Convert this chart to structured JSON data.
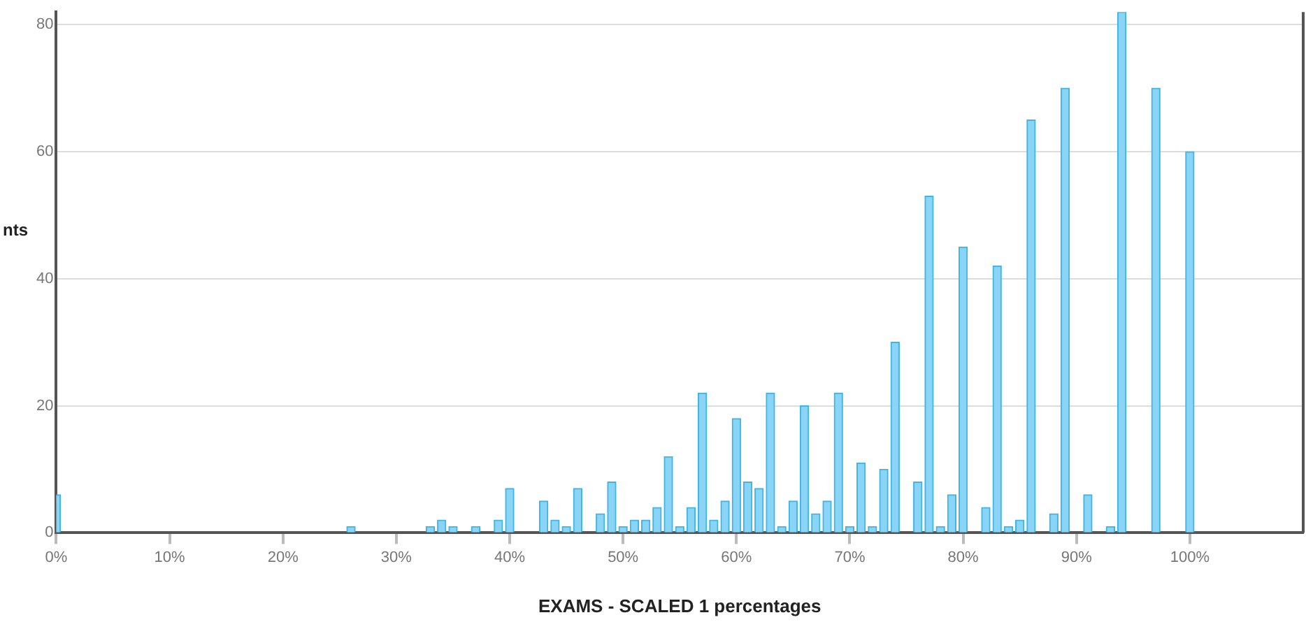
{
  "chart_data": {
    "type": "bar",
    "xlabel": "EXAMS - SCALED 1 percentages",
    "ylabel": "nts",
    "x": [
      0,
      26,
      33,
      34,
      35,
      37,
      39,
      40,
      43,
      44,
      45,
      46,
      48,
      49,
      50,
      51,
      52,
      53,
      54,
      55,
      56,
      57,
      58,
      59,
      60,
      61,
      62,
      63,
      64,
      65,
      66,
      67,
      68,
      69,
      70,
      71,
      72,
      73,
      74,
      76,
      77,
      78,
      79,
      80,
      82,
      83,
      84,
      85,
      86,
      88,
      89,
      91,
      93,
      94,
      97,
      100
    ],
    "values": [
      6,
      1,
      1,
      2,
      1,
      1,
      2,
      7,
      5,
      2,
      1,
      7,
      3,
      8,
      1,
      2,
      2,
      4,
      12,
      1,
      4,
      22,
      2,
      5,
      18,
      8,
      7,
      22,
      1,
      5,
      20,
      3,
      5,
      22,
      1,
      11,
      1,
      10,
      30,
      8,
      53,
      1,
      6,
      45,
      4,
      42,
      1,
      2,
      65,
      3,
      70,
      6,
      1,
      82,
      70,
      60
    ],
    "color": "#8ad5f6",
    "xlim": [
      0,
      110
    ],
    "xticks": [
      {
        "value": 0,
        "label": "0%"
      },
      {
        "value": 10,
        "label": "10%"
      },
      {
        "value": 20,
        "label": "20%"
      },
      {
        "value": 30,
        "label": "30%"
      },
      {
        "value": 40,
        "label": "40%"
      },
      {
        "value": 50,
        "label": "50%"
      },
      {
        "value": 60,
        "label": "60%"
      },
      {
        "value": 70,
        "label": "70%"
      },
      {
        "value": 80,
        "label": "80%"
      },
      {
        "value": 90,
        "label": "90%"
      },
      {
        "value": 100,
        "label": "100%"
      }
    ],
    "ylim": [
      0,
      82
    ],
    "yticks": [
      0,
      20,
      40,
      60,
      80
    ],
    "grid": "y"
  }
}
